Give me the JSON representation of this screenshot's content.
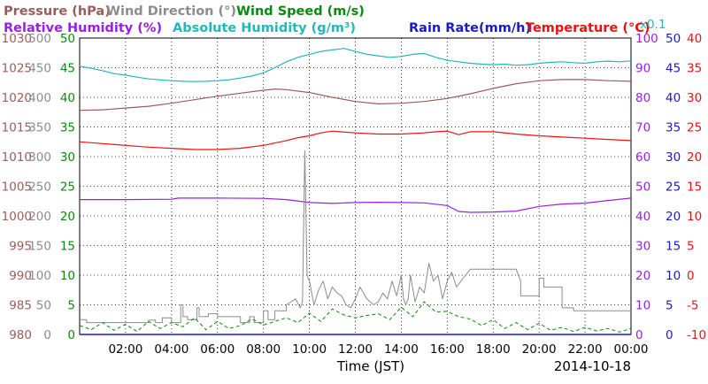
{
  "chart_data": {
    "type": "line",
    "title": "",
    "xlabel": "Time (JST)",
    "date_label": "2014-10-18",
    "scale_note": "x0.1",
    "x_ticks": [
      "02:00",
      "04:00",
      "06:00",
      "08:00",
      "10:00",
      "12:00",
      "14:00",
      "16:00",
      "18:00",
      "20:00",
      "22:00",
      "00:00"
    ],
    "x_range_hours": [
      0,
      24
    ],
    "grid": true,
    "legend_placement": "top",
    "legend": [
      {
        "label": "Pressure (hPa)",
        "color": "#9c5c5c"
      },
      {
        "label": "Wind Direction (°)",
        "color": "#8c8c8c"
      },
      {
        "label": "Wind Speed (m/s)",
        "color": "#0a8a0a"
      },
      {
        "label": "Relative Humidity (%)",
        "color": "#9a1ee6"
      },
      {
        "label": "Absolute Humidity (g/m³)",
        "color": "#20b8b8"
      },
      {
        "label": "Rain Rate(mm/h)",
        "color": "#1a1acc"
      },
      {
        "label": "Temperature (°C)",
        "color": "#ee1111"
      }
    ],
    "axes": {
      "pressure": {
        "color": "#9c5c5c",
        "ticks": [
          "1030",
          "1025",
          "1020",
          "1015",
          "1010",
          "1005",
          "1000",
          "995",
          "990",
          "985",
          "980"
        ],
        "range": [
          980,
          1030
        ]
      },
      "wind_direction": {
        "color": "#8c8c8c",
        "ticks": [
          "500",
          "450",
          "400",
          "350",
          "300",
          "250",
          "200",
          "150",
          "100",
          "50",
          "0"
        ],
        "range": [
          0,
          500
        ]
      },
      "wind_speed": {
        "color": "#0a8a0a",
        "ticks": [
          "50",
          "45",
          "40",
          "35",
          "30",
          "25",
          "20",
          "15",
          "10",
          "5",
          "0"
        ],
        "range": [
          0,
          50
        ]
      },
      "humidity": {
        "color": "#9a1ee6",
        "ticks": [
          "100",
          "90",
          "80",
          "70",
          "60",
          "50",
          "40",
          "30",
          "20",
          "10",
          "0"
        ],
        "range": [
          0,
          100
        ]
      },
      "rain": {
        "color": "#1a1acc",
        "ticks": [
          "50",
          "45",
          "40",
          "35",
          "30",
          "25",
          "20",
          "15",
          "10",
          "5",
          "0"
        ],
        "range": [
          0,
          50
        ]
      },
      "temperature": {
        "color": "#ee1111",
        "ticks": [
          "40",
          "35",
          "30",
          "25",
          "20",
          "15",
          "10",
          "5",
          "0",
          "-5",
          "-10"
        ],
        "range": [
          -10,
          40
        ]
      }
    },
    "series": [
      {
        "name": "Pressure (hPa)",
        "axis": "pressure",
        "color": "#9c5c5c",
        "x": [
          0,
          1,
          2,
          3,
          4,
          5,
          6,
          7,
          8,
          8.5,
          9,
          10,
          11,
          12,
          13,
          14,
          15,
          16,
          17,
          18,
          19,
          20,
          21,
          22,
          23,
          24
        ],
        "y": [
          1017.8,
          1017.9,
          1018.2,
          1018.5,
          1019.0,
          1019.6,
          1020.2,
          1020.7,
          1021.2,
          1021.4,
          1021.3,
          1020.8,
          1020.0,
          1019.3,
          1018.9,
          1019.0,
          1019.3,
          1019.8,
          1020.6,
          1021.5,
          1022.3,
          1022.8,
          1023.0,
          1023.0,
          1022.8,
          1022.7
        ]
      },
      {
        "name": "Absolute Humidity (g/m³)",
        "axis": "humidity",
        "color": "#20b8b8",
        "x": [
          0,
          0.5,
          1,
          1.5,
          2,
          2.5,
          3,
          3.5,
          4,
          4.5,
          5,
          5.5,
          6,
          6.5,
          7,
          7.5,
          8,
          8.5,
          9,
          9.5,
          10,
          10.5,
          11,
          11.5,
          12,
          12.5,
          13,
          13.5,
          14,
          14.5,
          15,
          15.5,
          16,
          16.5,
          17,
          17.5,
          18,
          18.5,
          19,
          19.5,
          20,
          20.5,
          21,
          21.5,
          22,
          22.5,
          23,
          23.5,
          24
        ],
        "y": [
          90.5,
          89.8,
          89.0,
          88.0,
          87.5,
          86.8,
          86.2,
          85.9,
          85.6,
          85.4,
          85.3,
          85.4,
          85.6,
          85.9,
          86.5,
          87.2,
          88.3,
          90.0,
          92.0,
          93.5,
          94.5,
          95.5,
          96.0,
          96.5,
          95.5,
          94.5,
          94.0,
          93.5,
          93.8,
          94.5,
          94.8,
          93.5,
          92.5,
          92.0,
          91.5,
          91.2,
          91.0,
          91.2,
          90.8,
          91.0,
          91.5,
          91.8,
          92.0,
          91.7,
          91.5,
          92.0,
          92.2,
          92.0,
          92.3
        ]
      },
      {
        "name": "Relative Humidity (%)",
        "axis": "humidity",
        "color": "#9a1ee6",
        "x": [
          0,
          2,
          4,
          4.3,
          6,
          8,
          9,
          10,
          11,
          12,
          13,
          14,
          15,
          16,
          16.5,
          17,
          18,
          19,
          20,
          21,
          22,
          23,
          24
        ],
        "y": [
          45.5,
          45.5,
          45.6,
          46.0,
          46.0,
          45.9,
          45.5,
          44.5,
          44.2,
          44.5,
          44.6,
          44.5,
          44.4,
          43.5,
          41.5,
          41.2,
          41.3,
          41.6,
          43.2,
          44.0,
          44.3,
          45.2,
          46.0
        ]
      },
      {
        "name": "Temperature (°C)",
        "axis": "temperature",
        "color": "#ee1111",
        "x": [
          0,
          1,
          2,
          3,
          4,
          5,
          6,
          7,
          8,
          9,
          9.5,
          10,
          10.5,
          11,
          12,
          13,
          14,
          15,
          15.5,
          16,
          16.5,
          17,
          18,
          19,
          20,
          21,
          22,
          23,
          24
        ],
        "y": [
          22.5,
          22.2,
          21.9,
          21.6,
          21.4,
          21.2,
          21.2,
          21.4,
          21.9,
          22.7,
          23.2,
          23.5,
          24.0,
          24.3,
          24.0,
          23.8,
          23.8,
          24.0,
          24.2,
          24.3,
          23.7,
          24.2,
          24.2,
          23.8,
          23.5,
          23.3,
          23.1,
          22.9,
          22.7
        ]
      },
      {
        "name": "Wind Direction (°)",
        "axis": "wind_direction",
        "color": "#8c8c8c",
        "x": [
          0,
          0.3,
          0.3,
          3,
          3,
          3.3,
          3.3,
          3.6,
          3.6,
          4.0,
          4.0,
          4.4,
          4.4,
          4.5,
          4.5,
          4.7,
          4.7,
          5.1,
          5.1,
          5.2,
          5.2,
          5.6,
          5.6,
          6.0,
          6.0,
          7.0,
          7.0,
          7.4,
          7.4,
          7.6,
          7.6,
          8.0,
          8.0,
          8.2,
          8.2,
          8.5,
          8.5,
          9.0,
          9.0,
          9.4,
          9.6,
          9.7,
          9.8,
          9.9,
          10.0,
          10.1,
          10.2,
          10.4,
          10.6,
          10.8,
          11.0,
          11.2,
          11.4,
          11.6,
          11.8,
          12.0,
          12.2,
          12.5,
          12.8,
          13.0,
          13.2,
          13.4,
          13.6,
          13.8,
          14.0,
          14.1,
          14.2,
          14.3,
          14.4,
          14.6,
          14.8,
          15.0,
          15.2,
          15.4,
          15.6,
          15.8,
          16.0,
          16.2,
          16.4,
          16.6,
          16.8,
          17.0,
          18.0,
          19.0,
          19.2,
          19.2,
          20.0,
          20.0,
          20.2,
          20.2,
          21.0,
          21.0,
          21.5,
          21.5,
          24.0
        ],
        "y": [
          25,
          25,
          20,
          20,
          24,
          24,
          20,
          20,
          28,
          28,
          20,
          20,
          50,
          50,
          30,
          30,
          25,
          25,
          45,
          45,
          30,
          30,
          35,
          35,
          30,
          30,
          20,
          20,
          30,
          30,
          20,
          20,
          40,
          40,
          25,
          25,
          40,
          40,
          50,
          60,
          45,
          55,
          310,
          100,
          90,
          70,
          50,
          75,
          90,
          60,
          80,
          70,
          65,
          50,
          45,
          60,
          80,
          60,
          50,
          55,
          70,
          60,
          90,
          65,
          100,
          60,
          50,
          60,
          100,
          55,
          80,
          70,
          120,
          90,
          100,
          60,
          90,
          105,
          80,
          90,
          100,
          110,
          110,
          110,
          90,
          65,
          65,
          95,
          95,
          80,
          80,
          45,
          45,
          40,
          40
        ]
      },
      {
        "name": "Wind Speed (m/s)",
        "axis": "wind_speed",
        "color": "#0a8a0a",
        "x": [
          0,
          0.5,
          1,
          1.5,
          2,
          2.5,
          3,
          3.5,
          4,
          4.5,
          5,
          5.5,
          6,
          6.5,
          7,
          7.5,
          8,
          8.5,
          9,
          9.5,
          10,
          10.5,
          11,
          11.5,
          12,
          12.5,
          13,
          13.5,
          14,
          14.5,
          15,
          15.5,
          16,
          16.5,
          17,
          17.5,
          18,
          18.5,
          19,
          19.5,
          20,
          20.5,
          21,
          21.5,
          22,
          22.5,
          23,
          23.5,
          24
        ],
        "y": [
          1.5,
          0.8,
          2.0,
          0.7,
          1.7,
          0.5,
          2.2,
          1.0,
          2.0,
          1.3,
          2.8,
          0.8,
          2.2,
          1.0,
          1.5,
          2.6,
          1.6,
          2.2,
          2.8,
          2.0,
          3.6,
          2.2,
          4.3,
          3.3,
          2.8,
          3.2,
          3.5,
          2.5,
          4.6,
          3.0,
          5.5,
          3.8,
          3.9,
          3.0,
          2.6,
          1.5,
          2.5,
          1.0,
          2.0,
          0.8,
          1.9,
          0.7,
          1.2,
          0.5,
          1.2,
          0.6,
          1.0,
          0.4,
          1.0
        ]
      },
      {
        "name": "Rain Rate(mm/h)",
        "axis": "rain",
        "color": "#1a1acc",
        "x": [
          0,
          24
        ],
        "y": [
          0,
          0
        ]
      }
    ]
  }
}
